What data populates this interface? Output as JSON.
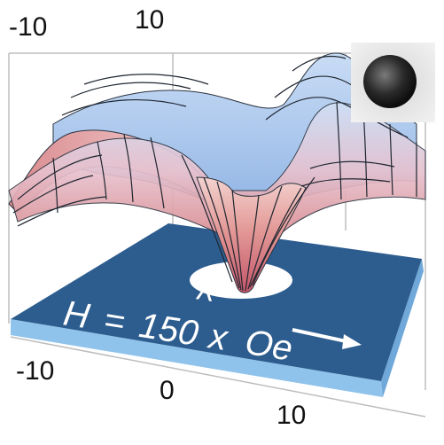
{
  "figure": {
    "top_axis": {
      "ticks": [
        "-10",
        "10"
      ]
    },
    "bottom_axis": {
      "ticks": [
        "-10",
        "0",
        "10"
      ]
    },
    "field_label": {
      "symbol": "H",
      "equals": "=",
      "value": "150",
      "direction_hat": "^",
      "direction": "x",
      "unit": "Oe"
    },
    "colors": {
      "substrate_top": "#2d5d8f",
      "substrate_edge": "#8fc3ec",
      "hole": "#ffffff",
      "surface_ridge": "#b9d3f2",
      "surface_trough": "#d98a8e",
      "frame": "#bdbdbd",
      "arrow": "#ffffff"
    },
    "inset": {
      "image": "dark-sphere-micrograph"
    }
  }
}
